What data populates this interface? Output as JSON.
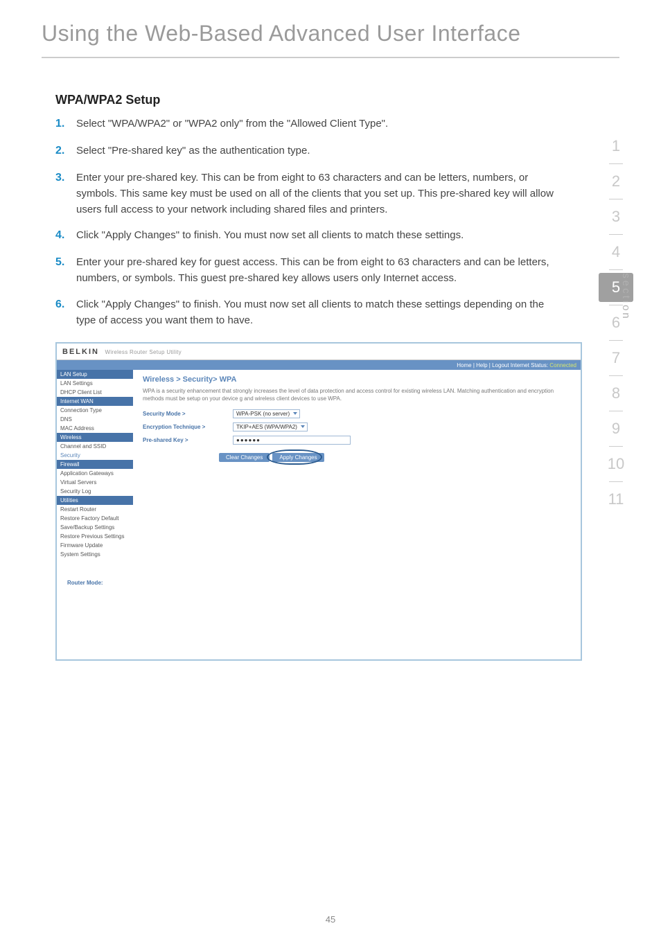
{
  "page_title": "Using the Web-Based Advanced User Interface",
  "section_heading": "WPA/WPA2 Setup",
  "steps": [
    {
      "n": "1.",
      "t": "Select \"WPA/WPA2\" or \"WPA2 only\" from the \"Allowed Client Type\"."
    },
    {
      "n": "2.",
      "t": "Select \"Pre-shared key\" as the authentication type."
    },
    {
      "n": "3.",
      "t": "Enter your pre-shared key. This can be from eight to 63 characters and can be letters, numbers, or symbols. This same key must be used on all of the clients that you set up. This pre-shared key will allow users full access to your network including shared files and printers."
    },
    {
      "n": "4.",
      "t": "Click \"Apply Changes\" to finish. You must now set all clients to match these settings."
    },
    {
      "n": "5.",
      "t": "Enter your pre-shared key for guest access. This can be from eight to 63 characters and can be letters, numbers, or symbols. This guest pre-shared key allows users only Internet access."
    },
    {
      "n": "6.",
      "t": "Click \"Apply Changes\" to finish. You must now set all clients to match these settings depending on the type of access you want them to have."
    }
  ],
  "nav": {
    "items": [
      "1",
      "2",
      "3",
      "4",
      "5",
      "6",
      "7",
      "8",
      "9",
      "10",
      "11"
    ],
    "active_index": 4,
    "label": "section"
  },
  "page_number": "45",
  "screenshot": {
    "logo": "BELKIN",
    "logo_sub": "Wireless Router Setup Utility",
    "topbar_links": "Home | Help | Logout   Internet Status:",
    "topbar_status": "Connected",
    "breadcrumb": "Wireless > Security> WPA",
    "desc": "WPA is a security enhancement that strongly increases the level of data protection and access control for existing wireless LAN. Matching authentication and encryption methods must be setup on your device g and wireless client devices to use WPA.",
    "fields": {
      "mode_label": "Security Mode >",
      "mode_value": "WPA-PSK (no server)",
      "enc_label": "Encryption Technique >",
      "enc_value": "TKIP+AES (WPA/WPA2)",
      "key_label": "Pre-shared Key >",
      "key_value": "●●●●●●"
    },
    "buttons": {
      "clear": "Clear Changes",
      "apply": "Apply Changes"
    },
    "sidebar": {
      "groups": [
        {
          "hdr": "LAN Setup",
          "items": [
            "LAN Settings",
            "DHCP Client List"
          ]
        },
        {
          "hdr": "Internet WAN",
          "items": [
            "Connection Type",
            "DNS",
            "MAC Address"
          ]
        },
        {
          "hdr": "Wireless",
          "items": [
            "Channel and SSID",
            "Security"
          ]
        },
        {
          "hdr": "Firewall",
          "items": [
            "Application Gateways",
            "Virtual Servers",
            "Security Log"
          ]
        },
        {
          "hdr": "Utilities",
          "items": [
            "Restart Router",
            "Restore Factory Default",
            "Save/Backup Settings",
            "Restore Previous Settings",
            "Firmware Update",
            "System Settings"
          ]
        }
      ],
      "router_mode": "Router Mode:"
    }
  }
}
